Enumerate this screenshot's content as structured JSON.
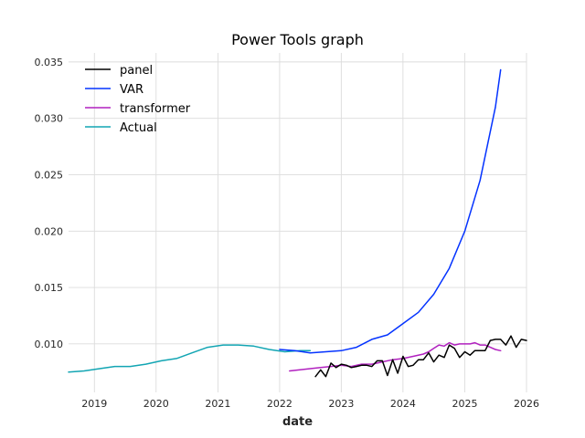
{
  "chart_data": {
    "type": "line",
    "title": "Power Tools graph",
    "xlabel": "date",
    "ylabel": "",
    "xlim": [
      "2018-08-01",
      "2026-01-01"
    ],
    "ylim": [
      0.0057,
      0.0358
    ],
    "x_ticks": [
      "2019",
      "2020",
      "2021",
      "2022",
      "2023",
      "2024",
      "2025",
      "2026"
    ],
    "y_ticks": [
      "0.010",
      "0.015",
      "0.020",
      "0.025",
      "0.030",
      "0.035"
    ],
    "grid": true,
    "legend_position": "top-left",
    "series": [
      {
        "name": "panel",
        "color": "#000000",
        "x": [
          "2022-08-01",
          "2022-09-01",
          "2022-10-01",
          "2022-11-01",
          "2022-12-01",
          "2023-01-01",
          "2023-02-01",
          "2023-03-01",
          "2023-04-01",
          "2023-05-01",
          "2023-06-01",
          "2023-07-01",
          "2023-08-01",
          "2023-09-01",
          "2023-10-01",
          "2023-11-01",
          "2023-12-01",
          "2024-01-01",
          "2024-02-01",
          "2024-03-01",
          "2024-04-01",
          "2024-05-01",
          "2024-06-01",
          "2024-07-01",
          "2024-08-01",
          "2024-09-01",
          "2024-10-01",
          "2024-11-01",
          "2024-12-01",
          "2025-01-01",
          "2025-02-01",
          "2025-03-01",
          "2025-04-01",
          "2025-05-01",
          "2025-06-01",
          "2025-07-01",
          "2025-08-01",
          "2025-09-01",
          "2025-10-01",
          "2025-11-01",
          "2025-12-01",
          "2026-01-01"
        ],
        "y": [
          0.0071,
          0.0077,
          0.0071,
          0.0083,
          0.0079,
          0.0082,
          0.0081,
          0.0079,
          0.008,
          0.0081,
          0.0081,
          0.008,
          0.0085,
          0.0085,
          0.0072,
          0.0086,
          0.0074,
          0.0089,
          0.008,
          0.0081,
          0.0086,
          0.0086,
          0.0092,
          0.0084,
          0.009,
          0.0088,
          0.0099,
          0.0096,
          0.0088,
          0.0093,
          0.009,
          0.0094,
          0.0094,
          0.0094,
          0.0103,
          0.0104,
          0.0104,
          0.0099,
          0.0107,
          0.0097,
          0.0104,
          0.0103
        ]
      },
      {
        "name": "VAR",
        "color": "#0433ff",
        "x": [
          "2022-01-01",
          "2022-04-01",
          "2022-07-01",
          "2022-10-01",
          "2023-01-01",
          "2023-04-01",
          "2023-07-01",
          "2023-10-01",
          "2024-01-01",
          "2024-04-01",
          "2024-07-01",
          "2024-10-01",
          "2025-01-01",
          "2025-04-01",
          "2025-07-01",
          "2025-08-01"
        ],
        "y": [
          0.0095,
          0.0094,
          0.0092,
          0.0093,
          0.0094,
          0.0097,
          0.0104,
          0.0108,
          0.0118,
          0.0128,
          0.0144,
          0.0167,
          0.02,
          0.0245,
          0.031,
          0.0343
        ]
      },
      {
        "name": "transformer",
        "color": "#b121bf",
        "x": [
          "2022-03-01",
          "2022-05-01",
          "2022-07-01",
          "2022-09-01",
          "2022-11-01",
          "2023-01-01",
          "2023-03-01",
          "2023-05-01",
          "2023-07-01",
          "2023-09-01",
          "2023-11-01",
          "2024-01-01",
          "2024-03-01",
          "2024-05-01",
          "2024-06-01",
          "2024-07-01",
          "2024-08-01",
          "2024-09-01",
          "2024-10-01",
          "2024-11-01",
          "2024-12-01",
          "2025-01-01",
          "2025-02-01",
          "2025-03-01",
          "2025-04-01",
          "2025-05-01",
          "2025-06-01",
          "2025-07-01",
          "2025-08-01"
        ],
        "y": [
          0.0076,
          0.0077,
          0.0078,
          0.0079,
          0.008,
          0.0081,
          0.008,
          0.0082,
          0.0082,
          0.0084,
          0.0086,
          0.0087,
          0.0089,
          0.0091,
          0.0093,
          0.0096,
          0.0099,
          0.0098,
          0.0101,
          0.0099,
          0.01,
          0.01,
          0.01,
          0.0101,
          0.0099,
          0.0099,
          0.0097,
          0.0095,
          0.0094
        ]
      },
      {
        "name": "Actual",
        "color": "#12a5b3",
        "x": [
          "2018-08-01",
          "2018-11-01",
          "2019-02-01",
          "2019-05-01",
          "2019-08-01",
          "2019-11-01",
          "2020-02-01",
          "2020-05-01",
          "2020-08-01",
          "2020-11-01",
          "2021-02-01",
          "2021-05-01",
          "2021-08-01",
          "2021-11-01",
          "2022-02-01",
          "2022-05-01",
          "2022-07-01"
        ],
        "y": [
          0.0075,
          0.0076,
          0.0078,
          0.008,
          0.008,
          0.0082,
          0.0085,
          0.0087,
          0.0092,
          0.0097,
          0.0099,
          0.0099,
          0.0098,
          0.0095,
          0.0093,
          0.0094,
          0.0094
        ]
      }
    ]
  }
}
